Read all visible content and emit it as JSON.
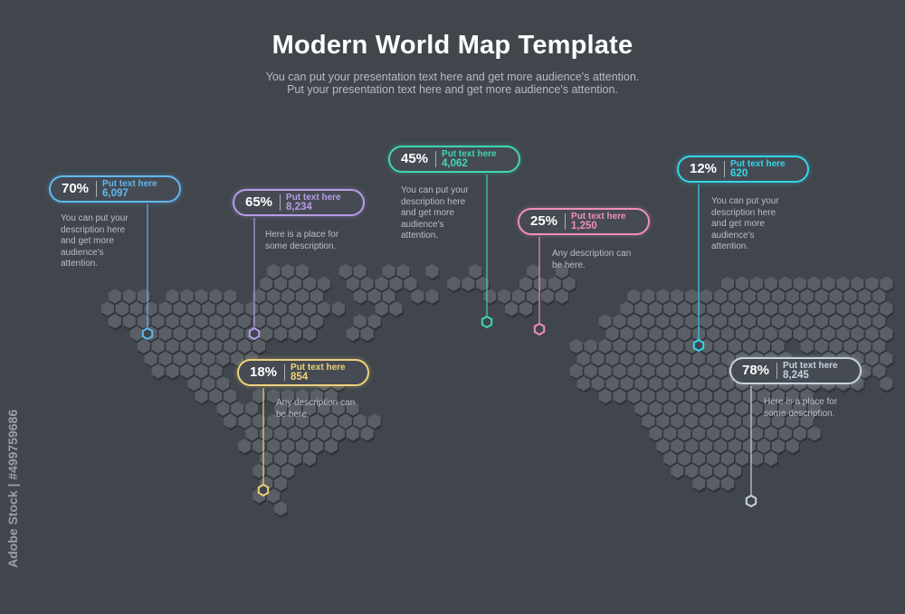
{
  "header": {
    "title": "Modern World Map Template",
    "subtitle_line1": "You can put your presentation text here and get more audience's attention.",
    "subtitle_line2": "Put your presentation text here and get more audience's attention."
  },
  "markers": [
    {
      "id": "north-america-west",
      "percent": "70%",
      "label": "Put text here",
      "value": "6,097",
      "color": "#5fb8f0",
      "desc": [
        "You can put your",
        "description here",
        "and get more",
        "audience's",
        "attention."
      ]
    },
    {
      "id": "north-america-east",
      "percent": "65%",
      "label": "Put text here",
      "value": "8,234",
      "color": "#b79ce8",
      "desc": [
        "Here is a place for",
        "some description."
      ]
    },
    {
      "id": "south-america",
      "percent": "18%",
      "label": "Put text here",
      "value": "854",
      "color": "#ecd27a",
      "desc": [
        "Any description can",
        "be here."
      ]
    },
    {
      "id": "europe",
      "percent": "45%",
      "label": "Put text here",
      "value": "4,062",
      "color": "#3fd6b4",
      "desc": [
        "You can put your",
        "description here",
        "and get more",
        "audience's",
        "attention."
      ]
    },
    {
      "id": "russia-west",
      "percent": "25%",
      "label": "Put text here",
      "value": "1,250",
      "color": "#f08fb8",
      "desc": [
        "Any description can",
        "be here."
      ]
    },
    {
      "id": "east-asia",
      "percent": "12%",
      "label": "Put text here",
      "value": "620",
      "color": "#34d6e8",
      "desc": [
        "You can put your",
        "description here",
        "and get more",
        "audience's",
        "attention."
      ]
    },
    {
      "id": "australia",
      "percent": "78%",
      "label": "Put text here",
      "value": "8,245",
      "color": "#c7d2df",
      "desc": [
        "Here is a place for",
        "some description."
      ]
    }
  ],
  "map": {
    "hex_fill": "#5a5f66",
    "hex_shadow": "#2f3338",
    "background": "#41464d"
  },
  "watermark": "Adobe Stock | #499759686"
}
